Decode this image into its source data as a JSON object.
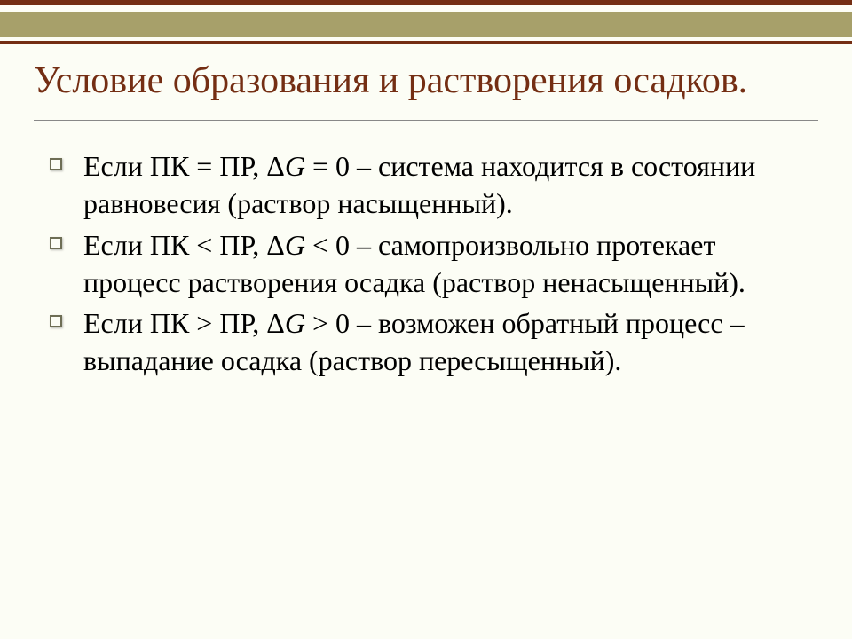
{
  "top_bars": [
    {
      "height": 6,
      "color": "#742e13"
    },
    {
      "height": 8,
      "color": "#fcfdf5"
    },
    {
      "height": 28,
      "color": "#a7a06a"
    },
    {
      "height": 4,
      "color": "#fcfdf5"
    },
    {
      "height": 4,
      "color": "#742e13"
    }
  ],
  "title_color": "#742e13",
  "title_fontsize": 42,
  "background_color": "#fcfdf5",
  "bullet_border_color": "#6e6e55",
  "body_fontsize": 32,
  "title": "Условие образования и растворения осадков.",
  "bullets": [
    {
      "prefix": "Если ПК = ПР, Δ",
      "italic": "G",
      "suffix": " = 0 – система находится в состоянии равновесия (раствор насыщенный)."
    },
    {
      "prefix": "Если ПК < ПР, Δ",
      "italic": "G",
      "suffix": " < 0 – самопроизвольно протекает процесс растворения осадка (раствор ненасыщенный)."
    },
    {
      "prefix": "Если ПК > ПР, Δ",
      "italic": "G",
      "suffix": " > 0 – возможен обратный процесс – выпадание осадка (раствор пересыщенный)."
    }
  ]
}
